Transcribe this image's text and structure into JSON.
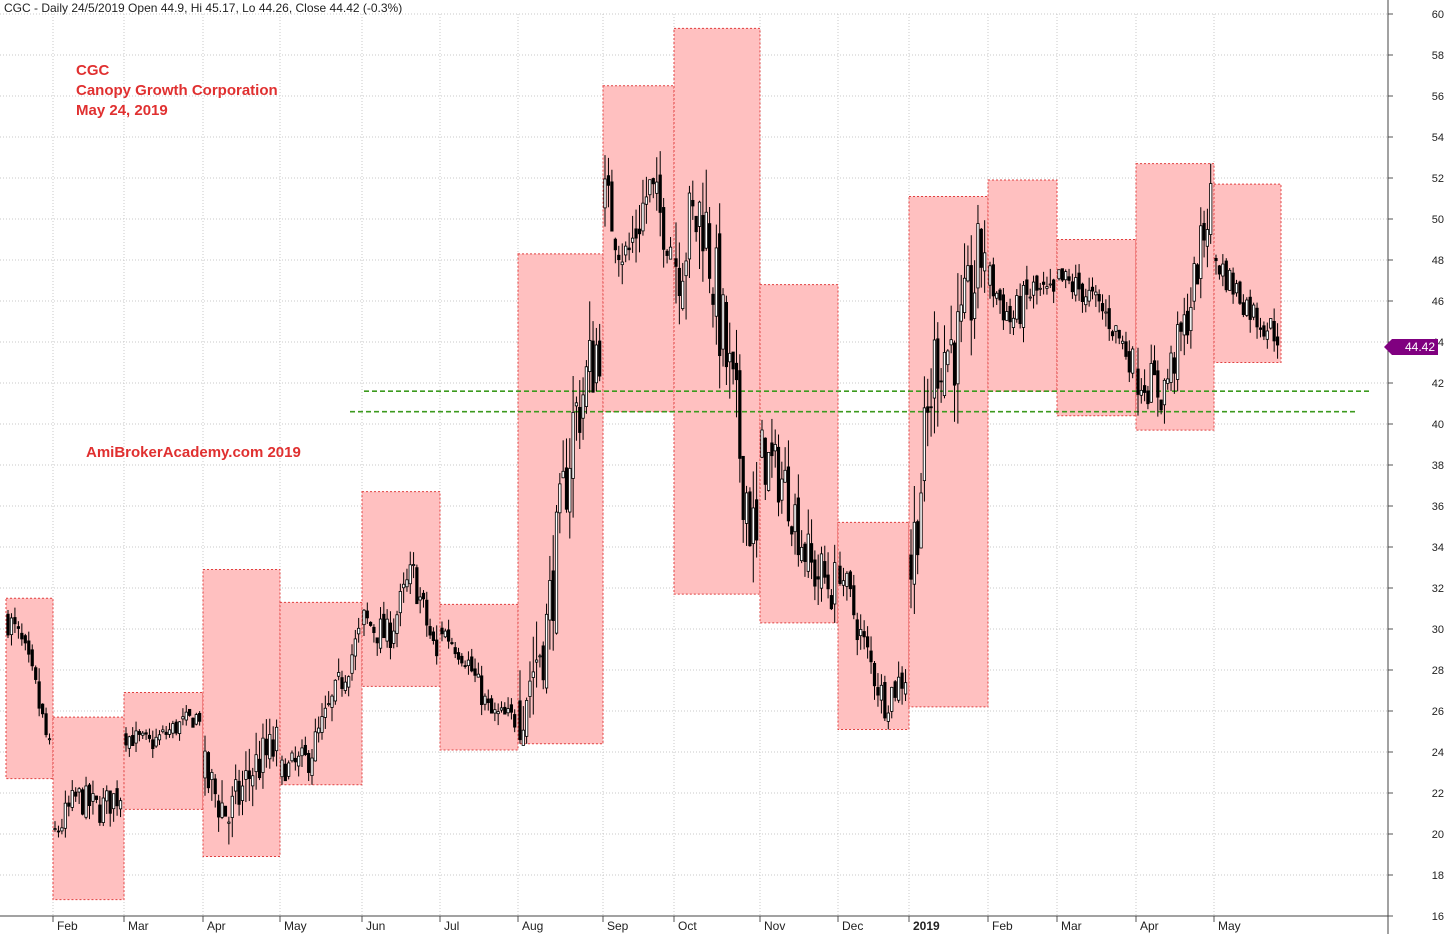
{
  "header": {
    "text": "CGC - Daily 24/5/2019 Open 44.9, Hi 45.17, Lo 44.26, Close 44.42 (-0.3%)"
  },
  "annotation": {
    "symbol": "CGC",
    "company": "Canopy Growth Corporation",
    "date": "May 24, 2019",
    "watermark": "AmiBrokerAcademy.com  2019"
  },
  "last_price_label": "44.42",
  "colors": {
    "box_fill": "#ffc0c0",
    "box_border": "#e04040",
    "candle": "#000000",
    "support_line": "#3c9a1e",
    "grid": "#c8c8c8",
    "price_tag": "#800080",
    "annotation_text": "#e03030"
  },
  "chart_data": {
    "type": "candlestick",
    "title": "",
    "y_axis": {
      "position": "right",
      "min": 16,
      "max": 60,
      "ticks": [
        16,
        18,
        20,
        22,
        24,
        26,
        28,
        30,
        32,
        34,
        36,
        38,
        40,
        42,
        44,
        46,
        48,
        50,
        52,
        54,
        56,
        58,
        60
      ]
    },
    "x_axis": {
      "ticks": [
        "Feb",
        "Mar",
        "Apr",
        "May",
        "Jun",
        "Jul",
        "Aug",
        "Sep",
        "Oct",
        "Nov",
        "Dec",
        "2019",
        "Feb",
        "Mar",
        "Apr",
        "May"
      ]
    },
    "grid": true,
    "monthly_ranges": [
      {
        "month": "Jan 2018",
        "high": 31.5,
        "low": 22.7
      },
      {
        "month": "Feb 2018",
        "high": 25.7,
        "low": 16.8
      },
      {
        "month": "Mar 2018",
        "high": 26.9,
        "low": 21.2
      },
      {
        "month": "Apr 2018",
        "high": 32.9,
        "low": 18.9
      },
      {
        "month": "May 2018",
        "high": 31.3,
        "low": 22.4
      },
      {
        "month": "Jun 2018",
        "high": 36.7,
        "low": 27.2
      },
      {
        "month": "Jul 2018",
        "high": 31.2,
        "low": 24.1
      },
      {
        "month": "Aug 2018",
        "high": 48.3,
        "low": 24.4
      },
      {
        "month": "Sep 2018",
        "high": 56.5,
        "low": 40.6
      },
      {
        "month": "Oct 2018",
        "high": 59.3,
        "low": 31.7
      },
      {
        "month": "Nov 2018",
        "high": 46.8,
        "low": 30.3
      },
      {
        "month": "Dec 2018",
        "high": 35.2,
        "low": 25.1
      },
      {
        "month": "Jan 2019",
        "high": 51.1,
        "low": 26.2
      },
      {
        "month": "Feb 2019",
        "high": 51.9,
        "low": 41.6
      },
      {
        "month": "Mar 2019",
        "high": 49.0,
        "low": 40.4
      },
      {
        "month": "Apr 2019",
        "high": 52.7,
        "low": 39.7
      },
      {
        "month": "May 2019",
        "high": 51.7,
        "low": 43.0
      }
    ],
    "horizontal_lines": [
      {
        "value": 41.6,
        "style": "dashed"
      },
      {
        "value": 40.6,
        "style": "dashed"
      }
    ],
    "close_path": [
      [
        "Jan 2018",
        30.5
      ],
      [
        "Jan 2018",
        29.2
      ],
      [
        "Jan 2018",
        27.0
      ],
      [
        "Jan 2018",
        24.0
      ],
      [
        "Feb 2018",
        20.0
      ],
      [
        "Feb 2018",
        21.8
      ],
      [
        "Feb 2018",
        21.2
      ],
      [
        "Feb 2018",
        22.0
      ],
      [
        "Mar 2018",
        24.8
      ],
      [
        "Mar 2018",
        24.4
      ],
      [
        "Mar 2018",
        25.2
      ],
      [
        "Mar 2018",
        25.8
      ],
      [
        "Apr 2018",
        22.8
      ],
      [
        "Apr 2018",
        20.8
      ],
      [
        "Apr 2018",
        23.2
      ],
      [
        "Apr 2018",
        24.2
      ],
      [
        "May 2018",
        23.0
      ],
      [
        "May 2018",
        23.6
      ],
      [
        "May 2018",
        26.5
      ],
      [
        "May 2018",
        29.6
      ],
      [
        "Jun 2018",
        30.4
      ],
      [
        "Jun 2018",
        29.6
      ],
      [
        "Jun 2018",
        32.8
      ],
      [
        "Jun 2018",
        28.5
      ],
      [
        "Jul 2018",
        30.0
      ],
      [
        "Jul 2018",
        28.6
      ],
      [
        "Jul 2018",
        25.8
      ],
      [
        "Jul 2018",
        25.6
      ],
      [
        "Aug 2018",
        26.4
      ],
      [
        "Aug 2018",
        30.0
      ],
      [
        "Aug 2018",
        40.0
      ],
      [
        "Aug 2018",
        44.2
      ],
      [
        "Sep 2018",
        51.0
      ],
      [
        "Sep 2018",
        48.0
      ],
      [
        "Sep 2018",
        51.5
      ],
      [
        "Sep 2018",
        49.0
      ],
      [
        "Oct 2018",
        48.2
      ],
      [
        "Oct 2018",
        50.5
      ],
      [
        "Oct 2018",
        42.0
      ],
      [
        "Oct 2018",
        33.5
      ],
      [
        "Nov 2018",
        38.5
      ],
      [
        "Nov 2018",
        37.0
      ],
      [
        "Nov 2018",
        33.0
      ],
      [
        "Nov 2018",
        32.0
      ],
      [
        "Dec 2018",
        33.0
      ],
      [
        "Dec 2018",
        29.5
      ],
      [
        "Dec 2018",
        26.5
      ],
      [
        "Dec 2018",
        27.8
      ],
      [
        "Jan 2019",
        33.0
      ],
      [
        "Jan 2019",
        43.5
      ],
      [
        "Jan 2019",
        44.0
      ],
      [
        "Jan 2019",
        49.0
      ],
      [
        "Feb 2019",
        47.0
      ],
      [
        "Feb 2019",
        45.0
      ],
      [
        "Feb 2019",
        46.5
      ],
      [
        "Feb 2019",
        46.0
      ],
      [
        "Mar 2019",
        47.0
      ],
      [
        "Mar 2019",
        46.5
      ],
      [
        "Mar 2019",
        45.2
      ],
      [
        "Mar 2019",
        43.0
      ],
      [
        "Apr 2019",
        42.5
      ],
      [
        "Apr 2019",
        41.5
      ],
      [
        "Apr 2019",
        45.0
      ],
      [
        "Apr 2019",
        51.0
      ],
      [
        "May 2019",
        48.0
      ],
      [
        "May 2019",
        46.5
      ],
      [
        "May 2019",
        45.2
      ],
      [
        "May 2019",
        44.42
      ]
    ]
  }
}
